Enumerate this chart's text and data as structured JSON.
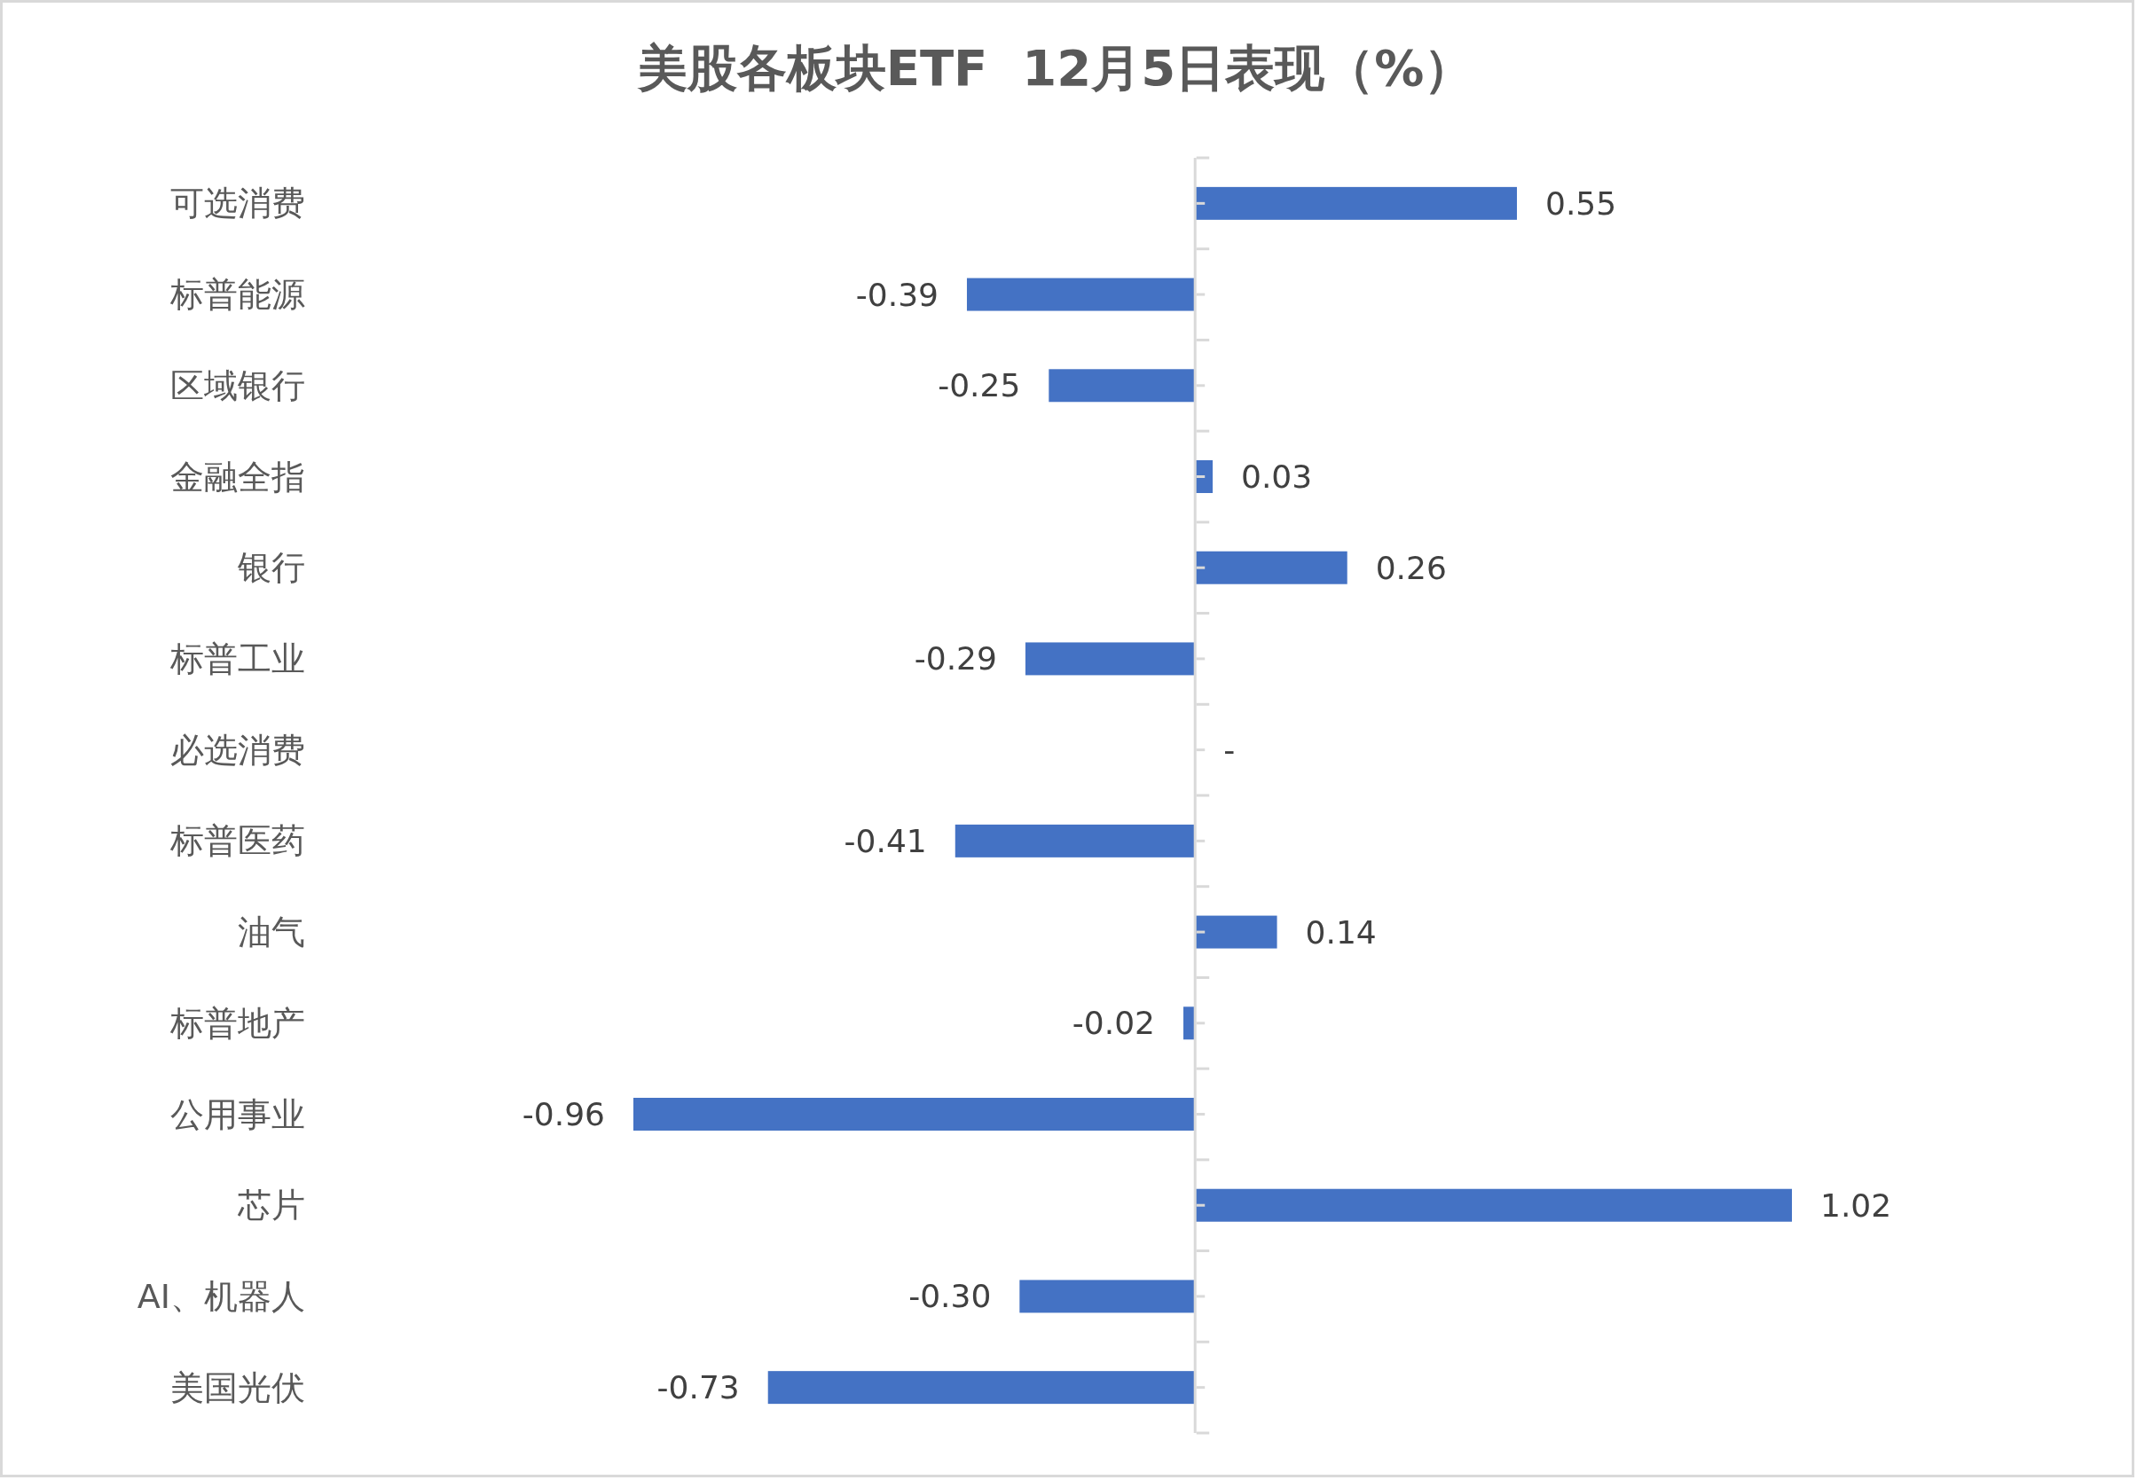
{
  "chart_data": {
    "type": "bar",
    "orientation": "horizontal",
    "title": "美股各板块ETF  12月5日表现（%）",
    "categories": [
      "可选消费",
      "标普能源",
      "区域银行",
      "金融全指",
      "银行",
      "标普工业",
      "必选消费",
      "标普医药",
      "油气",
      "标普地产",
      "公用事业",
      "芯片",
      "AI、机器人",
      "美国光伏"
    ],
    "values": [
      0.55,
      -0.39,
      -0.25,
      0.03,
      0.26,
      -0.29,
      0,
      -0.41,
      0.14,
      -0.02,
      -0.96,
      1.02,
      -0.3,
      -0.73
    ],
    "value_labels": [
      "0.55",
      "-0.39",
      "-0.25",
      "0.03",
      "0.26",
      "-0.29",
      "-",
      "-0.41",
      "0.14",
      "-0.02",
      "-0.96",
      "1.02",
      "-0.30",
      "-0.73"
    ],
    "color": "#4472c4"
  }
}
